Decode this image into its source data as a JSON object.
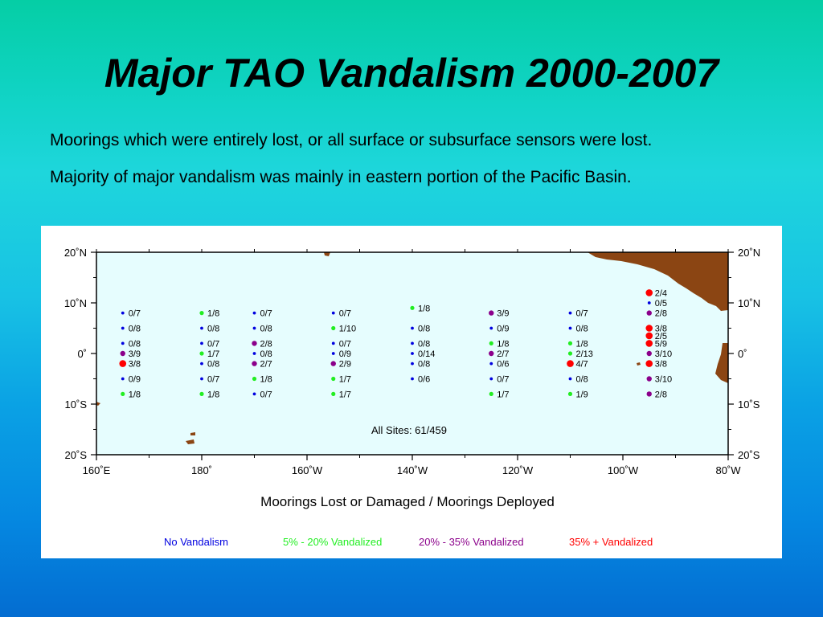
{
  "slide": {
    "title": "Major TAO Vandalism 2000-2007",
    "bullets": [
      "Moorings which were entirely lost, or all surface or subsurface sensors were lost.",
      "Majority of major vandalism was mainly in eastern portion of the Pacific Basin."
    ]
  },
  "map": {
    "ocean_color": "#e6fdfe",
    "land_color": "#8b4513",
    "x_ticks": [
      {
        "lon": 160,
        "label": "160˚E"
      },
      {
        "lon": 180,
        "label": "180˚"
      },
      {
        "lon": 200,
        "label": "160˚W"
      },
      {
        "lon": 220,
        "label": "140˚W"
      },
      {
        "lon": 240,
        "label": "120˚W"
      },
      {
        "lon": 260,
        "label": "100˚W"
      },
      {
        "lon": 280,
        "label": "80˚W"
      }
    ],
    "y_ticks": [
      {
        "lat": 20,
        "label": "20˚N"
      },
      {
        "lat": 10,
        "label": "10˚N"
      },
      {
        "lat": 0,
        "label": "0˚"
      },
      {
        "lat": -10,
        "label": "10˚S"
      },
      {
        "lat": -20,
        "label": "20˚S"
      }
    ],
    "summary": "All Sites: 61/459",
    "caption": "Moorings Lost or Damaged / Moorings Deployed",
    "categories": [
      {
        "key": "none",
        "label": "No Vandalism",
        "color": "#0000e0"
      },
      {
        "key": "low",
        "label": "5% - 20% Vandalized",
        "color": "#22ee22"
      },
      {
        "key": "mid",
        "label": "20% - 35% Vandalized",
        "color": "#8b008b"
      },
      {
        "key": "high",
        "label": "35% + Vandalized",
        "color": "#ff0000"
      }
    ],
    "sites": [
      {
        "lon": 165,
        "lat": 8,
        "label": "0/7",
        "cat": "none"
      },
      {
        "lon": 165,
        "lat": 5,
        "label": "0/8",
        "cat": "none"
      },
      {
        "lon": 165,
        "lat": 2,
        "label": "0/8",
        "cat": "none"
      },
      {
        "lon": 165,
        "lat": 0,
        "label": "3/9",
        "cat": "mid"
      },
      {
        "lon": 165,
        "lat": -2,
        "label": "3/8",
        "cat": "high"
      },
      {
        "lon": 165,
        "lat": -5,
        "label": "0/9",
        "cat": "none"
      },
      {
        "lon": 165,
        "lat": -8,
        "label": "1/8",
        "cat": "low"
      },
      {
        "lon": 180,
        "lat": 8,
        "label": "1/8",
        "cat": "low"
      },
      {
        "lon": 180,
        "lat": 5,
        "label": "0/8",
        "cat": "none"
      },
      {
        "lon": 180,
        "lat": 2,
        "label": "0/7",
        "cat": "none"
      },
      {
        "lon": 180,
        "lat": 0,
        "label": "1/7",
        "cat": "low"
      },
      {
        "lon": 180,
        "lat": -2,
        "label": "0/8",
        "cat": "none"
      },
      {
        "lon": 180,
        "lat": -5,
        "label": "0/7",
        "cat": "none"
      },
      {
        "lon": 180,
        "lat": -8,
        "label": "1/8",
        "cat": "low"
      },
      {
        "lon": 190,
        "lat": 8,
        "label": "0/7",
        "cat": "none"
      },
      {
        "lon": 190,
        "lat": 5,
        "label": "0/8",
        "cat": "none"
      },
      {
        "lon": 190,
        "lat": 2,
        "label": "2/8",
        "cat": "mid"
      },
      {
        "lon": 190,
        "lat": 0,
        "label": "0/8",
        "cat": "none"
      },
      {
        "lon": 190,
        "lat": -2,
        "label": "2/7",
        "cat": "mid"
      },
      {
        "lon": 190,
        "lat": -5,
        "label": "1/8",
        "cat": "low"
      },
      {
        "lon": 190,
        "lat": -8,
        "label": "0/7",
        "cat": "none"
      },
      {
        "lon": 205,
        "lat": 8,
        "label": "0/7",
        "cat": "none"
      },
      {
        "lon": 205,
        "lat": 5,
        "label": "1/10",
        "cat": "low"
      },
      {
        "lon": 205,
        "lat": 2,
        "label": "0/7",
        "cat": "none"
      },
      {
        "lon": 205,
        "lat": 0,
        "label": "0/9",
        "cat": "none"
      },
      {
        "lon": 205,
        "lat": -2,
        "label": "2/9",
        "cat": "mid"
      },
      {
        "lon": 205,
        "lat": -5,
        "label": "1/7",
        "cat": "low"
      },
      {
        "lon": 205,
        "lat": -8,
        "label": "1/7",
        "cat": "low"
      },
      {
        "lon": 220,
        "lat": 9,
        "label": "1/8",
        "cat": "low"
      },
      {
        "lon": 220,
        "lat": 5,
        "label": "0/8",
        "cat": "none"
      },
      {
        "lon": 220,
        "lat": 2,
        "label": "0/8",
        "cat": "none"
      },
      {
        "lon": 220,
        "lat": 0,
        "label": "0/14",
        "cat": "none"
      },
      {
        "lon": 220,
        "lat": -2,
        "label": "0/8",
        "cat": "none"
      },
      {
        "lon": 220,
        "lat": -5,
        "label": "0/6",
        "cat": "none"
      },
      {
        "lon": 235,
        "lat": 8,
        "label": "3/9",
        "cat": "mid"
      },
      {
        "lon": 235,
        "lat": 5,
        "label": "0/9",
        "cat": "none"
      },
      {
        "lon": 235,
        "lat": 2,
        "label": "1/8",
        "cat": "low"
      },
      {
        "lon": 235,
        "lat": 0,
        "label": "2/7",
        "cat": "mid"
      },
      {
        "lon": 235,
        "lat": -2,
        "label": "0/6",
        "cat": "none"
      },
      {
        "lon": 235,
        "lat": -5,
        "label": "0/7",
        "cat": "none"
      },
      {
        "lon": 235,
        "lat": -8,
        "label": "1/7",
        "cat": "low"
      },
      {
        "lon": 250,
        "lat": 8,
        "label": "0/7",
        "cat": "none"
      },
      {
        "lon": 250,
        "lat": 5,
        "label": "0/8",
        "cat": "none"
      },
      {
        "lon": 250,
        "lat": 2,
        "label": "1/8",
        "cat": "low"
      },
      {
        "lon": 250,
        "lat": 0,
        "label": "2/13",
        "cat": "low"
      },
      {
        "lon": 250,
        "lat": -2,
        "label": "4/7",
        "cat": "high"
      },
      {
        "lon": 250,
        "lat": -5,
        "label": "0/8",
        "cat": "none"
      },
      {
        "lon": 250,
        "lat": -8,
        "label": "1/9",
        "cat": "low"
      },
      {
        "lon": 265,
        "lat": 12,
        "label": "2/4",
        "cat": "high"
      },
      {
        "lon": 265,
        "lat": 10,
        "label": "0/5",
        "cat": "none"
      },
      {
        "lon": 265,
        "lat": 8,
        "label": "2/8",
        "cat": "mid"
      },
      {
        "lon": 265,
        "lat": 5,
        "label": "3/8",
        "cat": "high"
      },
      {
        "lon": 265,
        "lat": 3.5,
        "label": "2/5",
        "cat": "high"
      },
      {
        "lon": 265,
        "lat": 2,
        "label": "5/9",
        "cat": "high"
      },
      {
        "lon": 265,
        "lat": 0,
        "label": "3/10",
        "cat": "mid"
      },
      {
        "lon": 265,
        "lat": -2,
        "label": "3/8",
        "cat": "high"
      },
      {
        "lon": 265,
        "lat": -5,
        "label": "3/10",
        "cat": "mid"
      },
      {
        "lon": 265,
        "lat": -8,
        "label": "2/8",
        "cat": "mid"
      }
    ]
  }
}
